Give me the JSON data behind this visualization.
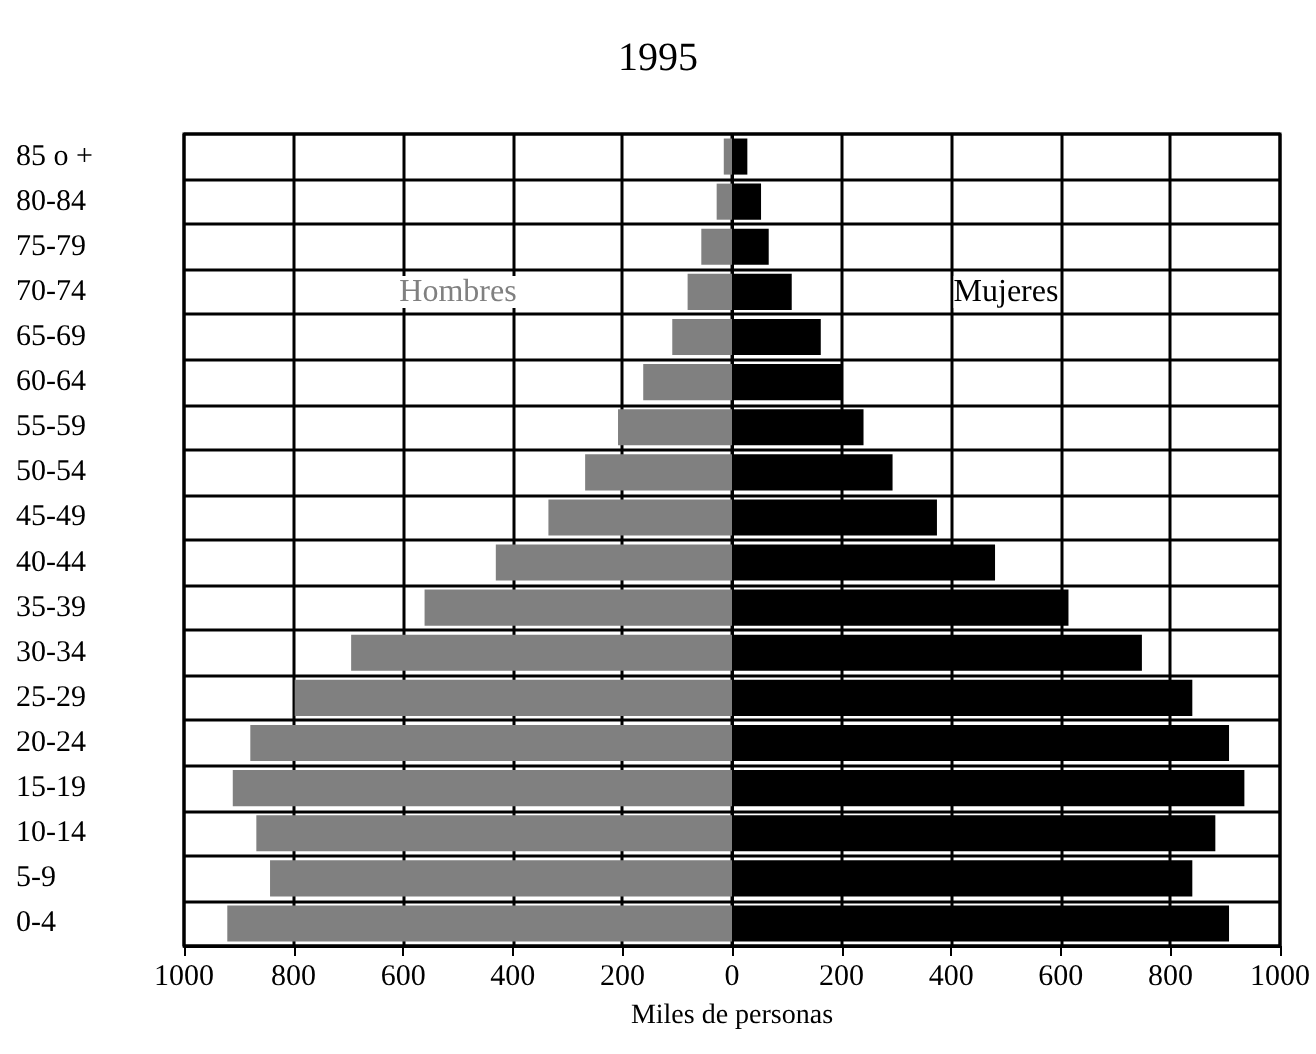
{
  "chart_data": {
    "type": "bar",
    "orientation": "horizontal",
    "stacked": true,
    "title": "1995",
    "xlabel": "Miles de personas",
    "categories": [
      "85 o +",
      "80-84",
      "75-79",
      "70-74",
      "65-69",
      "60-64",
      "55-59",
      "50-54",
      "45-49",
      "40-44",
      "35-39",
      "30-34",
      "25-29",
      "20-24",
      "15-19",
      "10-14",
      "5-9",
      "0-4"
    ],
    "series": [
      {
        "name": "Hombres",
        "color": "#808080",
        "values": [
          -15,
          -28,
          -56,
          -81,
          -109,
          -162,
          -208,
          -268,
          -335,
          -431,
          -561,
          -695,
          -798,
          -879,
          -911,
          -868,
          -843,
          -921
        ]
      },
      {
        "name": "Mujeres",
        "color": "#000000",
        "values": [
          28,
          53,
          67,
          109,
          162,
          200,
          240,
          293,
          374,
          480,
          614,
          748,
          840,
          907,
          935,
          882,
          840,
          907
        ]
      }
    ],
    "xlim": [
      -1000,
      1000
    ],
    "xticks": [
      {
        "value": -1000,
        "label": "1000"
      },
      {
        "value": -800,
        "label": "800"
      },
      {
        "value": -600,
        "label": "600"
      },
      {
        "value": -400,
        "label": "400"
      },
      {
        "value": -200,
        "label": "200"
      },
      0,
      200,
      400,
      600,
      800,
      1000
    ],
    "grid": true,
    "legend": false
  }
}
